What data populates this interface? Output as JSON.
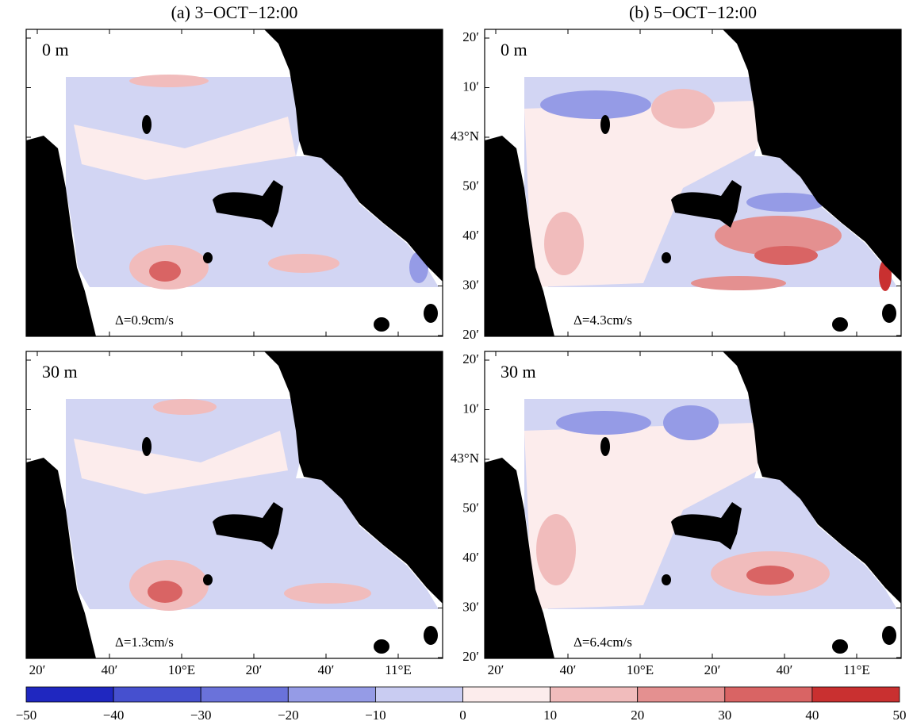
{
  "panels": [
    {
      "title": "(a) 3−OCT−12:00",
      "rows": [
        {
          "depth": "0 m",
          "delta": "Δ=0.9cm/s"
        },
        {
          "depth": "30 m",
          "delta": "Δ=1.3cm/s"
        }
      ]
    },
    {
      "title": "(b) 5−OCT−12:00",
      "rows": [
        {
          "depth": "0 m",
          "delta": "Δ=4.3cm/s"
        },
        {
          "depth": "30 m",
          "delta": "Δ=6.4cm/s"
        }
      ]
    }
  ],
  "lat_labels": [
    "20′",
    "10′",
    "43°N",
    "50′",
    "40′",
    "30′",
    "20′"
  ],
  "lon_labels": [
    "20′",
    "40′",
    "10°E",
    "20′",
    "40′",
    "11°E"
  ],
  "colorbar": {
    "ticks": [
      {
        "value": -50,
        "label": "−50"
      },
      {
        "value": -40,
        "label": "−40"
      },
      {
        "value": -30,
        "label": "−30"
      },
      {
        "value": -20,
        "label": "−20"
      },
      {
        "value": -10,
        "label": "−10"
      },
      0,
      10,
      20,
      30,
      40,
      50
    ],
    "colors": [
      "#1f27c0",
      "#4650cf",
      "#6a72da",
      "#959be6",
      "#c9ccf2",
      "#fcecec",
      "#f1bcbc",
      "#e49090",
      "#d96464",
      "#c93030"
    ]
  }
}
